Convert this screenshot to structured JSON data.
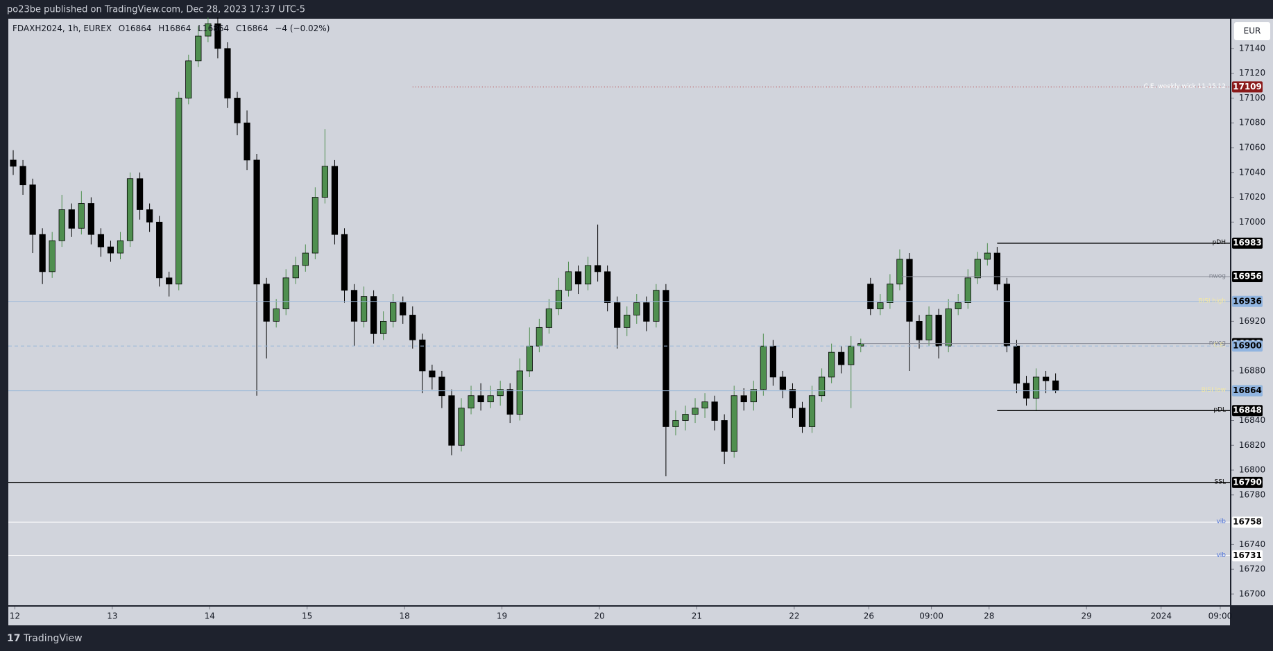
{
  "header": {
    "text": "po23be published on TradingView.com, Dec 28, 2023 17:37 UTC-5"
  },
  "footer": {
    "brand": "TradingView"
  },
  "chart_data": {
    "type": "candlestick",
    "legend": {
      "symbol": "FDAXH2024, 1h, EUREX",
      "o": "O16864",
      "h": "H16864",
      "l": "L16864",
      "c": "C16864",
      "change": "−4 (−0.02%)"
    },
    "currency": "EUR",
    "up_color": "#4f8f4f",
    "down_color": "#000000",
    "background": "#d1d4dc",
    "grid": false,
    "xlim": [
      0,
      125.4
    ],
    "xticks": [
      {
        "value": 0.67,
        "label": "12"
      },
      {
        "value": 10.67,
        "label": "13"
      },
      {
        "value": 20.67,
        "label": "14"
      },
      {
        "value": 30.67,
        "label": "15"
      },
      {
        "value": 40.67,
        "label": "18"
      },
      {
        "value": 50.67,
        "label": "19"
      },
      {
        "value": 60.67,
        "label": "20"
      },
      {
        "value": 70.67,
        "label": "21"
      },
      {
        "value": 80.67,
        "label": "22"
      },
      {
        "value": 88.33,
        "label": "26"
      },
      {
        "value": 94.75,
        "label": "09:00"
      },
      {
        "value": 100.67,
        "label": "28"
      },
      {
        "value": 110.67,
        "label": "29"
      },
      {
        "value": 118.33,
        "label": "2024"
      },
      {
        "value": 124.4,
        "label": "09:00"
      }
    ],
    "ylim": [
      16691,
      17164
    ],
    "yticks": [
      17140,
      17120,
      17100,
      17080,
      17060,
      17040,
      17020,
      17000,
      16920,
      16880,
      16840,
      16820,
      16800,
      16780,
      16740,
      16720,
      16700
    ],
    "open": [
      17050,
      17045,
      17030,
      16990,
      16960,
      16985,
      17010,
      16995,
      17015,
      16990,
      16980,
      16975,
      16985,
      17035,
      17010,
      17000,
      16955,
      16950,
      17100,
      17130,
      17150,
      17160,
      17140,
      17100,
      17080,
      17050,
      16950,
      16920,
      16930,
      16955,
      16965,
      16975,
      17020,
      17045,
      16990,
      16945,
      16920,
      16940,
      16910,
      16920,
      16935,
      16925,
      16905,
      16880,
      16875,
      16860,
      16820,
      16850,
      16860,
      16855,
      16860,
      16865,
      16845,
      16880,
      16900,
      16915,
      16930,
      16945,
      16960,
      16950,
      16965,
      16960,
      16935,
      16915,
      16925,
      16935,
      16920,
      16945,
      16835,
      16840,
      16845,
      16850,
      16855,
      16840,
      16815,
      16860,
      16855,
      16865,
      16900,
      16875,
      16865,
      16850,
      16835,
      16860,
      16875,
      16895,
      16885,
      16900,
      16950,
      16930,
      16935,
      16950,
      16970,
      16920,
      16905,
      16925,
      16900,
      16930,
      16935,
      16955,
      16970,
      16975,
      16950,
      16900,
      16870,
      16858,
      16875,
      16872
    ],
    "high": [
      17058,
      17050,
      17035,
      16995,
      16992,
      17022,
      17015,
      17025,
      17020,
      16995,
      16985,
      16992,
      17040,
      17040,
      17015,
      17005,
      16960,
      17105,
      17135,
      17158,
      17165,
      17165,
      17145,
      17105,
      17090,
      17055,
      16955,
      16938,
      16962,
      16972,
      16982,
      17028,
      17075,
      17050,
      16995,
      16950,
      16948,
      16945,
      16928,
      16942,
      16940,
      16932,
      16910,
      16885,
      16880,
      16865,
      16858,
      16868,
      16870,
      16868,
      16872,
      16870,
      16890,
      16915,
      16922,
      16938,
      16955,
      16968,
      16965,
      16972,
      16998,
      16965,
      16940,
      16932,
      16942,
      16940,
      16950,
      16950,
      16848,
      16852,
      16858,
      16862,
      16860,
      16845,
      16868,
      16866,
      16872,
      16910,
      16905,
      16880,
      16870,
      16855,
      16868,
      16882,
      16902,
      16900,
      16908,
      16906,
      16955,
      16942,
      16958,
      16978,
      16975,
      16925,
      16932,
      16930,
      16938,
      16942,
      16962,
      16976,
      16983,
      16980,
      16955,
      16905,
      16876,
      16882,
      16880,
      16878
    ],
    "low": [
      17038,
      17022,
      16975,
      16950,
      16955,
      16980,
      16988,
      16990,
      16982,
      16972,
      16968,
      16970,
      16980,
      17002,
      16992,
      16948,
      16940,
      16945,
      17095,
      17125,
      17145,
      17132,
      17092,
      17070,
      17042,
      16860,
      16890,
      16915,
      16925,
      16950,
      16960,
      16970,
      17015,
      16982,
      16935,
      16900,
      16915,
      16902,
      16905,
      16915,
      16918,
      16898,
      16862,
      16865,
      16850,
      16812,
      16815,
      16845,
      16848,
      16850,
      16852,
      16838,
      16840,
      16875,
      16895,
      16910,
      16925,
      16940,
      16942,
      16945,
      16952,
      16928,
      16898,
      16908,
      16918,
      16912,
      16915,
      16795,
      16828,
      16832,
      16838,
      16842,
      16832,
      16805,
      16810,
      16848,
      16848,
      16860,
      16868,
      16858,
      16842,
      16830,
      16830,
      16855,
      16870,
      16878,
      16850,
      16895,
      16925,
      16925,
      16930,
      16945,
      16880,
      16898,
      16900,
      16890,
      16895,
      16925,
      16930,
      16950,
      16965,
      16945,
      16895,
      16862,
      16852,
      16848,
      16862,
      16862
    ],
    "close": [
      17045,
      17030,
      16990,
      16960,
      16985,
      17010,
      16995,
      17015,
      16990,
      16980,
      16975,
      16985,
      17035,
      17010,
      17000,
      16955,
      16950,
      17100,
      17130,
      17150,
      17160,
      17140,
      17100,
      17080,
      17050,
      16950,
      16920,
      16930,
      16955,
      16965,
      16975,
      17020,
      17045,
      16990,
      16945,
      16920,
      16940,
      16910,
      16920,
      16935,
      16925,
      16905,
      16880,
      16875,
      16860,
      16820,
      16850,
      16860,
      16855,
      16860,
      16865,
      16845,
      16880,
      16900,
      16915,
      16930,
      16945,
      16960,
      16950,
      16965,
      16960,
      16935,
      16915,
      16925,
      16935,
      16920,
      16945,
      16835,
      16840,
      16845,
      16850,
      16855,
      16840,
      16815,
      16860,
      16855,
      16865,
      16900,
      16875,
      16865,
      16850,
      16835,
      16860,
      16875,
      16895,
      16885,
      16900,
      16902,
      16930,
      16935,
      16950,
      16970,
      16920,
      16905,
      16925,
      16900,
      16930,
      16935,
      16955,
      16970,
      16975,
      16950,
      16900,
      16870,
      16858,
      16875,
      16872,
      16864
    ],
    "levels": [
      {
        "name": "C.E. weekly wick 11-15.12",
        "value": 17109,
        "start": 41.5,
        "color": "#b22222",
        "style": "dotted",
        "box_color": "#8b1a1a",
        "text_color": "#ffffff",
        "name_color": "#ffffff"
      },
      {
        "name": "pDH",
        "value": 16983,
        "start": 101.5,
        "color": "#000000",
        "style": "solid",
        "box_color": "#000000",
        "text_color": "#ffffff",
        "name_color": "#000000"
      },
      {
        "name": "nwog",
        "value": 16956,
        "start": 91.7,
        "color": "#8a8e99",
        "style": "solid",
        "box_color": "#000000",
        "text_color": "#ffffff",
        "name_color": "#7a7e89"
      },
      {
        "name": "BISI high",
        "value": 16936,
        "start": 0,
        "color": "#9bb8d8",
        "style": "solid",
        "box_color": "#90b4e0",
        "text_color": "#000000",
        "name_color": "#f5e9a0"
      },
      {
        "name": "nwog",
        "value": 16902,
        "start": 87.5,
        "color": "#8a8e99",
        "style": "solid",
        "box_color": "#000000",
        "text_color": "#ffffff",
        "name_color": "#7a7e89"
      },
      {
        "name": "C.E.",
        "value": 16900,
        "start": 0,
        "color": "#9bb8d8",
        "style": "dashed",
        "box_color": "#90b4e0",
        "text_color": "#000000",
        "name_color": "#f5e9a0"
      },
      {
        "value": 16864,
        "start": 0,
        "color": "#a5d6a7",
        "style": "none",
        "box_color": "#a5d6a7",
        "text_color": "#000000"
      },
      {
        "name": "BISI low",
        "value": 16864,
        "start": 0,
        "color": "#9bb8d8",
        "style": "solid",
        "box_color": "#90b4e0",
        "text_color": "#000000",
        "name_color": "#f5e9a0"
      },
      {
        "name": "pDL",
        "value": 16848,
        "start": 101.5,
        "color": "#000000",
        "style": "solid",
        "box_color": "#000000",
        "text_color": "#ffffff",
        "name_color": "#000000"
      },
      {
        "name": "SSL",
        "value": 16790,
        "start": 0,
        "color": "#000000",
        "style": "solid",
        "box_color": "#000000",
        "text_color": "#ffffff",
        "name_color": "#000000"
      },
      {
        "name": "vib",
        "value": 16758,
        "start": 0,
        "color": "#ffffff",
        "style": "solid",
        "box_color": "#ffffff",
        "text_color": "#000000",
        "name_color": "#4a6fd8"
      },
      {
        "name": "vib",
        "value": 16731,
        "start": 0,
        "color": "#ffffff",
        "style": "solid",
        "box_color": "#ffffff",
        "text_color": "#000000",
        "name_color": "#4a6fd8"
      }
    ]
  }
}
